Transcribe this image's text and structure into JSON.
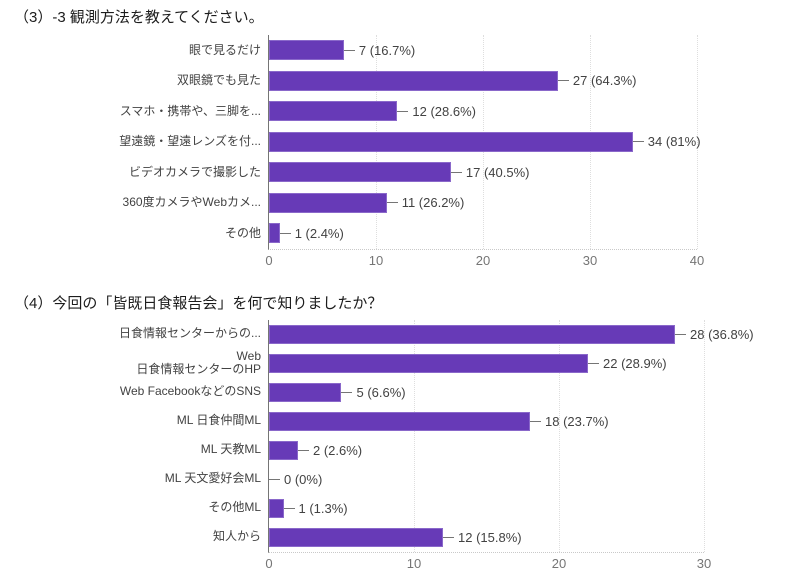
{
  "accent_color": "#673ab7",
  "chart_data": [
    {
      "type": "bar",
      "orientation": "horizontal",
      "title": "（3）-3 観測方法を教えてください。",
      "categories": [
        "眼で見るだけ",
        "双眼鏡でも見た",
        "スマホ・携帯や、三脚を...",
        "望遠鏡・望遠レンズを付...",
        "ビデオカメラで撮影した",
        "360度カメラやWebカメ...",
        "その他"
      ],
      "values": [
        7,
        27,
        12,
        34,
        17,
        11,
        1
      ],
      "value_labels": [
        "7 (16.7%)",
        "27 (64.3%)",
        "12 (28.6%)",
        "34 (81%)",
        "17 (40.5%)",
        "11 (26.2%)",
        "1 (2.4%)"
      ],
      "xlim": [
        0,
        40
      ],
      "xticks": [
        0,
        10,
        20,
        30,
        40
      ],
      "grid": true,
      "legend": "none",
      "bar_color": "#673ab7"
    },
    {
      "type": "bar",
      "orientation": "horizontal",
      "title": "（4）今回の「皆既日食報告会」を何で知りましたか？",
      "categories": [
        "日食情報センターからの...",
        "Web\n日食情報センターのHP",
        "Web FacebookなどのSNS",
        "ML 日食仲間ML",
        "ML 天教ML",
        "ML 天文愛好会ML",
        "その他ML",
        "知人から"
      ],
      "values": [
        28,
        22,
        5,
        18,
        2,
        0,
        1,
        12
      ],
      "value_labels": [
        "28 (36.8%)",
        "22 (28.9%)",
        "5 (6.6%)",
        "18 (23.7%)",
        "2 (2.6%)",
        "0 (0%)",
        "1 (1.3%)",
        "12 (15.8%)"
      ],
      "xlim": [
        0,
        30
      ],
      "xticks": [
        0,
        10,
        20,
        30
      ],
      "grid": true,
      "legend": "none",
      "bar_color": "#673ab7"
    }
  ]
}
